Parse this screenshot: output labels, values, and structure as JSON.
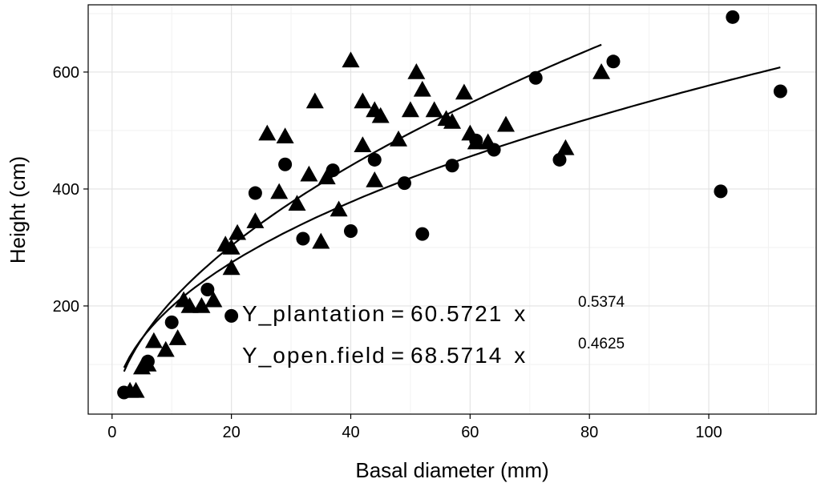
{
  "chart_data": {
    "type": "scatter",
    "title": "",
    "xlabel": "Basal diameter (mm)",
    "ylabel": "Height (cm)",
    "xlim": [
      -4,
      118
    ],
    "ylim": [
      15,
      715
    ],
    "x_ticks": [
      0,
      20,
      40,
      60,
      80,
      100
    ],
    "y_ticks": [
      200,
      400,
      600
    ],
    "grid": true,
    "series": [
      {
        "name": "plantation",
        "marker": "triangle",
        "points": [
          [
            3,
            55
          ],
          [
            4,
            55
          ],
          [
            5,
            95
          ],
          [
            6,
            100
          ],
          [
            7,
            140
          ],
          [
            9,
            125
          ],
          [
            11,
            145
          ],
          [
            12,
            210
          ],
          [
            13,
            200
          ],
          [
            15,
            200
          ],
          [
            17,
            210
          ],
          [
            19,
            305
          ],
          [
            20,
            300
          ],
          [
            20,
            265
          ],
          [
            21,
            325
          ],
          [
            24,
            345
          ],
          [
            26,
            495
          ],
          [
            28,
            395
          ],
          [
            29,
            490
          ],
          [
            31,
            375
          ],
          [
            33,
            425
          ],
          [
            34,
            550
          ],
          [
            35,
            310
          ],
          [
            36,
            420
          ],
          [
            38,
            365
          ],
          [
            40,
            620
          ],
          [
            42,
            475
          ],
          [
            42,
            550
          ],
          [
            44,
            535
          ],
          [
            44,
            415
          ],
          [
            45,
            525
          ],
          [
            48,
            485
          ],
          [
            50,
            535
          ],
          [
            51,
            600
          ],
          [
            52,
            570
          ],
          [
            54,
            535
          ],
          [
            56,
            520
          ],
          [
            57,
            515
          ],
          [
            59,
            565
          ],
          [
            60,
            495
          ],
          [
            61,
            480
          ],
          [
            63,
            480
          ],
          [
            66,
            510
          ],
          [
            76,
            470
          ],
          [
            82,
            600
          ]
        ]
      },
      {
        "name": "open.field",
        "marker": "circle",
        "points": [
          [
            2,
            52
          ],
          [
            6,
            105
          ],
          [
            10,
            172
          ],
          [
            16,
            228
          ],
          [
            20,
            183
          ],
          [
            24,
            393
          ],
          [
            29,
            442
          ],
          [
            32,
            315
          ],
          [
            37,
            432
          ],
          [
            40,
            328
          ],
          [
            44,
            450
          ],
          [
            49,
            410
          ],
          [
            52,
            323
          ],
          [
            57,
            440
          ],
          [
            61,
            483
          ],
          [
            64,
            467
          ],
          [
            71,
            590
          ],
          [
            75,
            450
          ],
          [
            84,
            618
          ],
          [
            102,
            396
          ],
          [
            104,
            694
          ],
          [
            112,
            567
          ]
        ]
      }
    ],
    "fits": [
      {
        "name": "plantation",
        "a": 60.5721,
        "b": 0.5374,
        "x_range": [
          2,
          82
        ]
      },
      {
        "name": "open.field",
        "a": 68.5714,
        "b": 0.4625,
        "x_range": [
          2,
          112
        ]
      }
    ],
    "annotations": [
      {
        "label": "Y_plantation",
        "coef": "60.5721",
        "var": "x",
        "exponent": "0.5374"
      },
      {
        "label": "Y_open.field",
        "coef": "68.5714",
        "var": "x",
        "exponent": "0.4625"
      }
    ]
  }
}
